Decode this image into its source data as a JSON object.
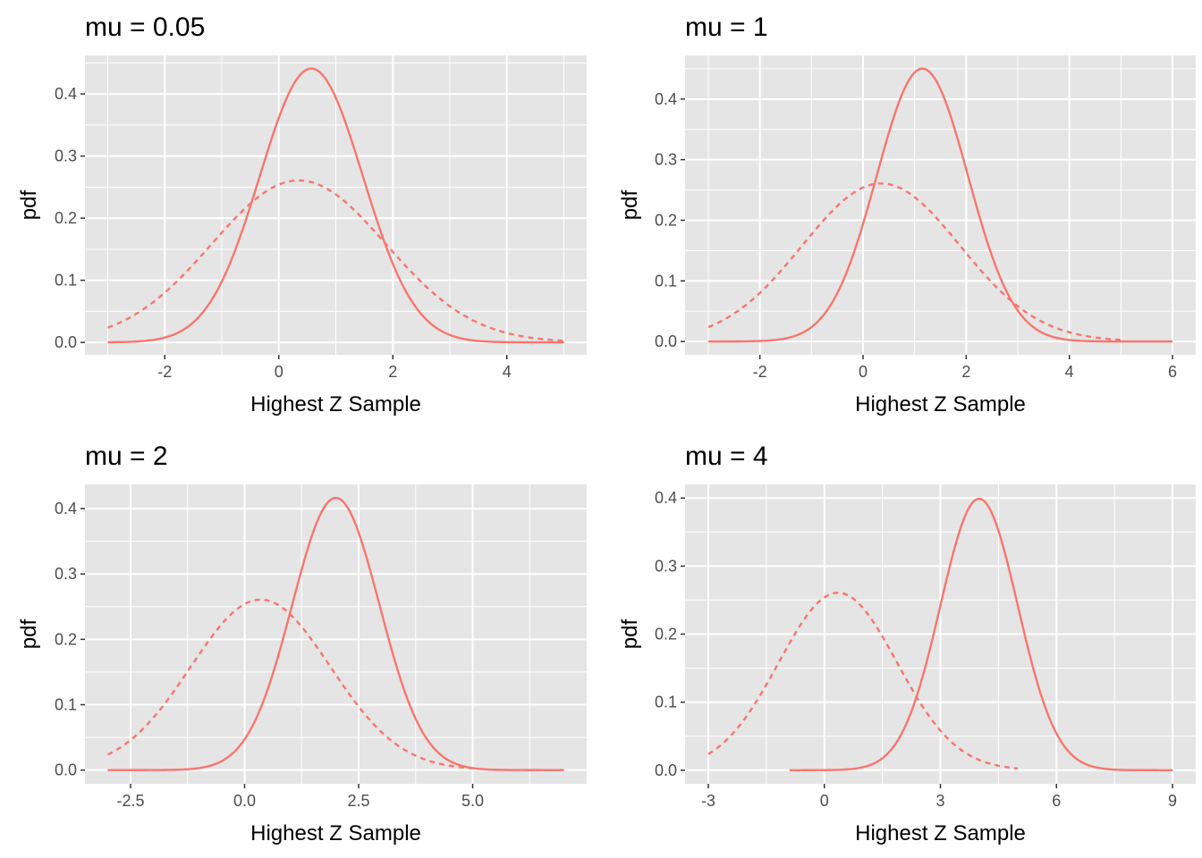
{
  "line_color": "#f8766d",
  "panel_background": "#e5e5e5",
  "grid_color": "#ffffff",
  "chart_data": [
    {
      "type": "line",
      "title": "mu = 0.05",
      "xlabel": "Highest Z Sample",
      "ylabel": "pdf",
      "xlim": [
        -3.4,
        5.4
      ],
      "ylim": [
        -0.02,
        0.462
      ],
      "x_ticks": [
        -2,
        0,
        2,
        4
      ],
      "x_tick_labels": [
        "-2",
        "0",
        "2",
        "4"
      ],
      "y_ticks": [
        0,
        0.1,
        0.2,
        0.3,
        0.4
      ],
      "y_tick_labels": [
        "0.0",
        "0.1",
        "0.2",
        "0.3",
        "0.4"
      ],
      "grid": true,
      "series": [
        {
          "linestyle": "solid",
          "distribution": "normal",
          "mean": 0.57,
          "sd": 0.905,
          "x_range": [
            -3,
            5
          ]
        },
        {
          "linestyle": "dashed",
          "distribution": "normal",
          "mean": 0.35,
          "sd": 1.53,
          "x_range": [
            -3,
            5
          ]
        }
      ]
    },
    {
      "type": "line",
      "title": "mu = 1",
      "xlabel": "Highest Z Sample",
      "ylabel": "pdf",
      "xlim": [
        -3.45,
        6.45
      ],
      "ylim": [
        -0.022,
        0.472
      ],
      "x_ticks": [
        -2,
        0,
        2,
        4,
        6
      ],
      "x_tick_labels": [
        "-2",
        "0",
        "2",
        "4",
        "6"
      ],
      "y_ticks": [
        0,
        0.1,
        0.2,
        0.3,
        0.4
      ],
      "y_tick_labels": [
        "0.0",
        "0.1",
        "0.2",
        "0.3",
        "0.4"
      ],
      "grid": true,
      "series": [
        {
          "linestyle": "solid",
          "distribution": "normal",
          "mean": 1.15,
          "sd": 0.886,
          "x_range": [
            -3,
            6
          ]
        },
        {
          "linestyle": "dashed",
          "distribution": "normal",
          "mean": 0.35,
          "sd": 1.53,
          "x_range": [
            -3,
            5
          ]
        }
      ]
    },
    {
      "type": "line",
      "title": "mu = 2",
      "xlabel": "Highest Z Sample",
      "ylabel": "pdf",
      "xlim": [
        -3.5,
        7.5
      ],
      "ylim": [
        -0.021,
        0.437
      ],
      "x_ticks": [
        -2.5,
        0,
        2.5,
        5
      ],
      "x_tick_labels": [
        "-2.5",
        "0.0",
        "2.5",
        "5.0"
      ],
      "y_ticks": [
        0,
        0.1,
        0.2,
        0.3,
        0.4
      ],
      "y_tick_labels": [
        "0.0",
        "0.1",
        "0.2",
        "0.3",
        "0.4"
      ],
      "grid": true,
      "series": [
        {
          "linestyle": "solid",
          "distribution": "normal",
          "mean": 2.0,
          "sd": 0.958,
          "x_range": [
            -3,
            7
          ]
        },
        {
          "linestyle": "dashed",
          "distribution": "normal",
          "mean": 0.35,
          "sd": 1.53,
          "x_range": [
            -3,
            5
          ]
        }
      ]
    },
    {
      "type": "line",
      "title": "mu = 4",
      "xlabel": "Highest Z Sample",
      "ylabel": "pdf",
      "xlim": [
        -3.6,
        9.6
      ],
      "ylim": [
        -0.02,
        0.42
      ],
      "x_ticks": [
        -3,
        0,
        3,
        6,
        9
      ],
      "x_tick_labels": [
        "-3",
        "0",
        "3",
        "6",
        "9"
      ],
      "y_ticks": [
        0,
        0.1,
        0.2,
        0.3,
        0.4
      ],
      "y_tick_labels": [
        "0.0",
        "0.1",
        "0.2",
        "0.3",
        "0.4"
      ],
      "grid": true,
      "series": [
        {
          "linestyle": "solid",
          "distribution": "normal",
          "mean": 4.0,
          "sd": 1.0,
          "x_range": [
            -0.9,
            9
          ]
        },
        {
          "linestyle": "dashed",
          "distribution": "normal",
          "mean": 0.35,
          "sd": 1.53,
          "x_range": [
            -3,
            5
          ]
        }
      ]
    }
  ]
}
